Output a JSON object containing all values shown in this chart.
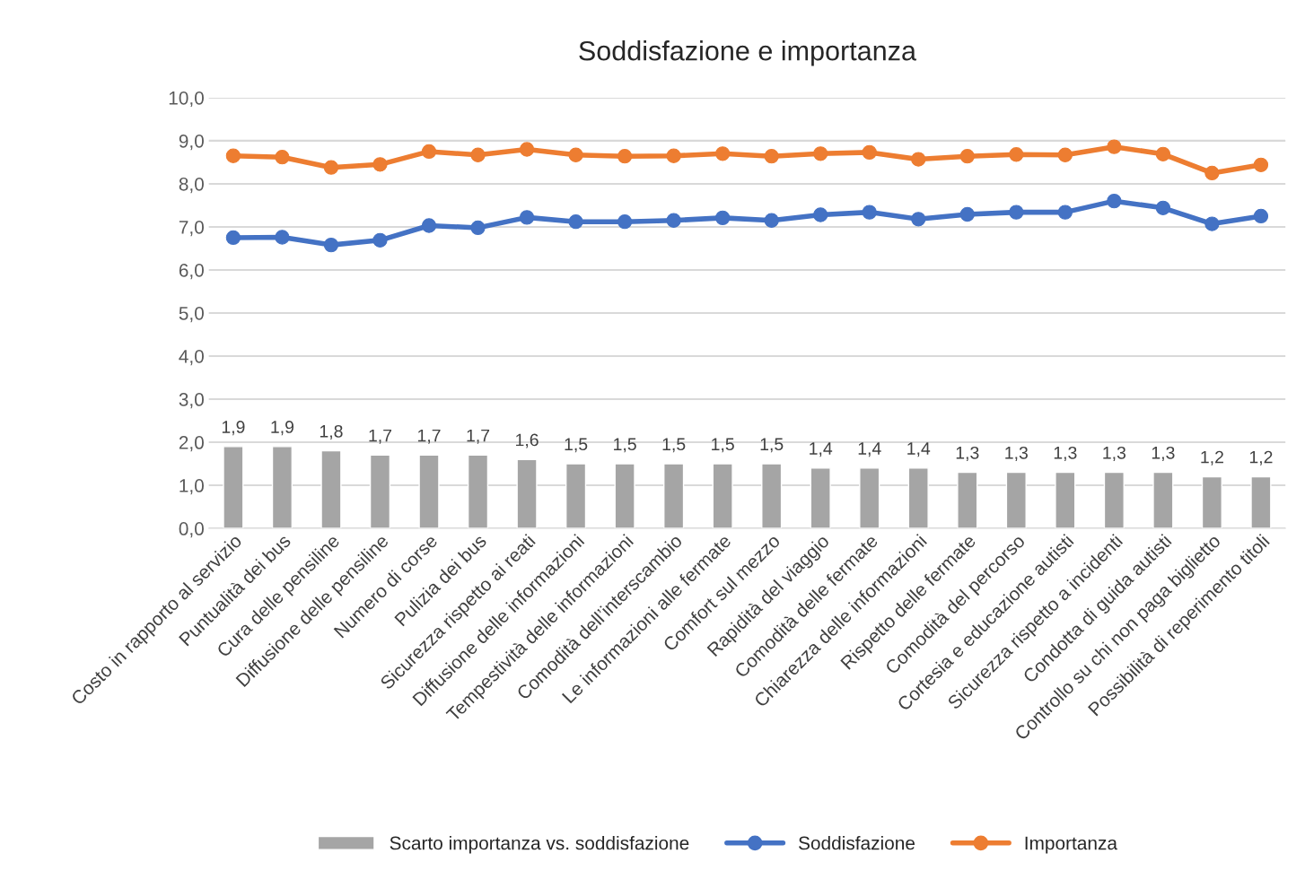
{
  "chart_data": {
    "type": "bar",
    "title": "Soddisfazione e importanza",
    "categories": [
      "Costo in rapporto al servizio",
      "Puntualità dei bus",
      "Cura delle pensiline",
      "Diffusione delle pensiline",
      "Numero di corse",
      "Pulizia dei bus",
      "Sicurezza rispetto ai reati",
      "Diffusione delle informazioni",
      "Tempestività delle informazioni",
      "Comodità dell’interscambio",
      "Le informazioni alle fermate",
      "Comfort sul mezzo",
      "Rapidità del viaggio",
      "Comodità delle fermate",
      "Chiarezza delle informazioni",
      "Rispetto delle fermate",
      "Comodità del percorso",
      "Cortesia e educazione autisti",
      "Sicurezza rispetto a incidenti",
      "Condotta di guida autisti",
      "Controllo su chi non paga biglietto",
      "Possibilità di reperimento titoli"
    ],
    "series": [
      {
        "name": "Scarto importanza vs. soddisfazione",
        "color": "#a5a5a5",
        "values": [
          1.9,
          1.9,
          1.8,
          1.7,
          1.7,
          1.7,
          1.6,
          1.5,
          1.5,
          1.5,
          1.5,
          1.5,
          1.4,
          1.4,
          1.4,
          1.3,
          1.3,
          1.3,
          1.3,
          1.3,
          1.2,
          1.2
        ],
        "value_labels": [
          "1,9",
          "1,9",
          "1,8",
          "1,7",
          "1,7",
          "1,7",
          "1,6",
          "1,5",
          "1,5",
          "1,5",
          "1,5",
          "1,5",
          "1,4",
          "1,4",
          "1,4",
          "1,3",
          "1,3",
          "1,3",
          "1,3",
          "1,3",
          "1,2",
          "1,2"
        ]
      },
      {
        "name": "Soddisfazione",
        "type": "line",
        "color": "#4472c4",
        "values": [
          6.75,
          6.76,
          6.58,
          6.69,
          7.03,
          6.98,
          7.22,
          7.12,
          7.12,
          7.15,
          7.21,
          7.15,
          7.28,
          7.34,
          7.18,
          7.29,
          7.34,
          7.34,
          7.6,
          7.44,
          7.07,
          7.25
        ]
      },
      {
        "name": "Importanza",
        "type": "line",
        "color": "#ed7d31",
        "values": [
          8.65,
          8.62,
          8.38,
          8.45,
          8.75,
          8.67,
          8.8,
          8.67,
          8.64,
          8.65,
          8.7,
          8.64,
          8.7,
          8.73,
          8.57,
          8.64,
          8.68,
          8.67,
          8.86,
          8.69,
          8.25,
          8.44
        ]
      }
    ],
    "ylim": [
      0,
      10
    ],
    "yticks": [
      {
        "value": 0,
        "label": "0,0"
      },
      {
        "value": 1,
        "label": "1,0"
      },
      {
        "value": 2,
        "label": "2,0"
      },
      {
        "value": 3,
        "label": "3,0"
      },
      {
        "value": 4,
        "label": "4,0"
      },
      {
        "value": 5,
        "label": "5,0"
      },
      {
        "value": 6,
        "label": "6,0"
      },
      {
        "value": 7,
        "label": "7,0"
      },
      {
        "value": 8,
        "label": "8,0"
      },
      {
        "value": 9,
        "label": "9,0"
      },
      {
        "value": 10,
        "label": "10,0"
      }
    ],
    "grid": "y",
    "legend": "bottom",
    "marker": "circle",
    "line_style": "solid"
  }
}
